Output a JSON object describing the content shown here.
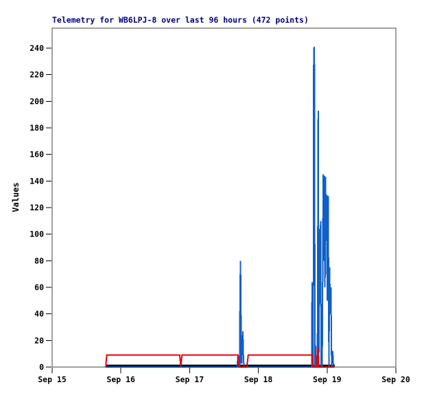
{
  "window": {
    "background": "#ffffff"
  },
  "chart_data": {
    "type": "line",
    "title": "Telemetry for WB6LPJ-8 over last 96 hours (472 points)",
    "ylabel": "Values",
    "xlabel": "",
    "grid": false,
    "legend": "none",
    "title_color": "#000080",
    "plot_border_color": "#404040",
    "x_axis_unit": "days after Sep 15",
    "xlim_days": [
      0,
      5
    ],
    "ylim": [
      0,
      255
    ],
    "x_tick_labels": [
      "Sep 15",
      "Sep 16",
      "Sep 17",
      "Sep 18",
      "Sep 19",
      "Sep 20"
    ],
    "y_ticks": [
      0,
      20,
      40,
      60,
      80,
      100,
      120,
      140,
      160,
      180,
      200,
      220,
      240
    ],
    "series": [
      {
        "name": "telemetry-channel-black",
        "color": "#000000",
        "width": 3,
        "points": [
          [
            0.78,
            1.0
          ],
          [
            4.11,
            1.0
          ]
        ]
      },
      {
        "name": "telemetry-channel-blue",
        "color": "#105fc8",
        "width": 2,
        "points": [
          [
            0.78,
            0
          ],
          [
            2.69,
            0
          ],
          [
            2.703,
            8
          ],
          [
            2.713,
            8
          ],
          [
            2.718,
            0
          ],
          [
            2.728,
            0
          ],
          [
            2.734,
            55
          ],
          [
            2.74,
            80
          ],
          [
            2.746,
            55
          ],
          [
            2.75,
            3
          ],
          [
            2.758,
            3
          ],
          [
            2.766,
            16
          ],
          [
            2.774,
            27
          ],
          [
            2.782,
            8
          ],
          [
            2.79,
            0
          ],
          [
            3.76,
            0
          ],
          [
            3.775,
            0
          ],
          [
            3.781,
            64
          ],
          [
            3.787,
            0
          ],
          [
            3.798,
            0
          ],
          [
            3.804,
            226
          ],
          [
            3.81,
            241
          ],
          [
            3.816,
            224
          ],
          [
            3.822,
            0
          ],
          [
            3.832,
            16
          ],
          [
            3.838,
            0
          ],
          [
            3.858,
            0
          ],
          [
            3.87,
            193
          ],
          [
            3.878,
            0
          ],
          [
            3.893,
            104
          ],
          [
            3.899,
            65
          ],
          [
            3.905,
            110
          ],
          [
            3.913,
            0
          ],
          [
            3.922,
            30
          ],
          [
            3.928,
            0
          ],
          [
            3.943,
            145
          ],
          [
            3.95,
            80
          ],
          [
            3.957,
            144
          ],
          [
            3.963,
            143
          ],
          [
            3.969,
            60
          ],
          [
            3.976,
            143
          ],
          [
            3.982,
            95
          ],
          [
            3.989,
            130
          ],
          [
            3.996,
            98
          ],
          [
            4.002,
            50
          ],
          [
            4.008,
            129
          ],
          [
            4.016,
            128
          ],
          [
            4.026,
            0
          ],
          [
            4.036,
            75
          ],
          [
            4.046,
            40
          ],
          [
            4.056,
            60
          ],
          [
            4.066,
            0
          ],
          [
            4.082,
            12
          ],
          [
            4.092,
            0
          ],
          [
            4.1,
            0
          ]
        ]
      },
      {
        "name": "telemetry-channel-red",
        "color": "#e60000",
        "width": 2,
        "points": [
          [
            0.78,
            0
          ],
          [
            0.786,
            4.5
          ],
          [
            0.794,
            9
          ],
          [
            1.855,
            9
          ],
          [
            1.872,
            0.5
          ],
          [
            1.888,
            9
          ],
          [
            2.705,
            9
          ],
          [
            2.72,
            0
          ],
          [
            2.83,
            0
          ],
          [
            2.842,
            4.5
          ],
          [
            2.852,
            9
          ],
          [
            3.787,
            9
          ],
          [
            3.793,
            0
          ],
          [
            3.852,
            0
          ],
          [
            3.856,
            14
          ],
          [
            3.868,
            14
          ],
          [
            3.872,
            0
          ],
          [
            4.1,
            0
          ]
        ]
      }
    ]
  }
}
